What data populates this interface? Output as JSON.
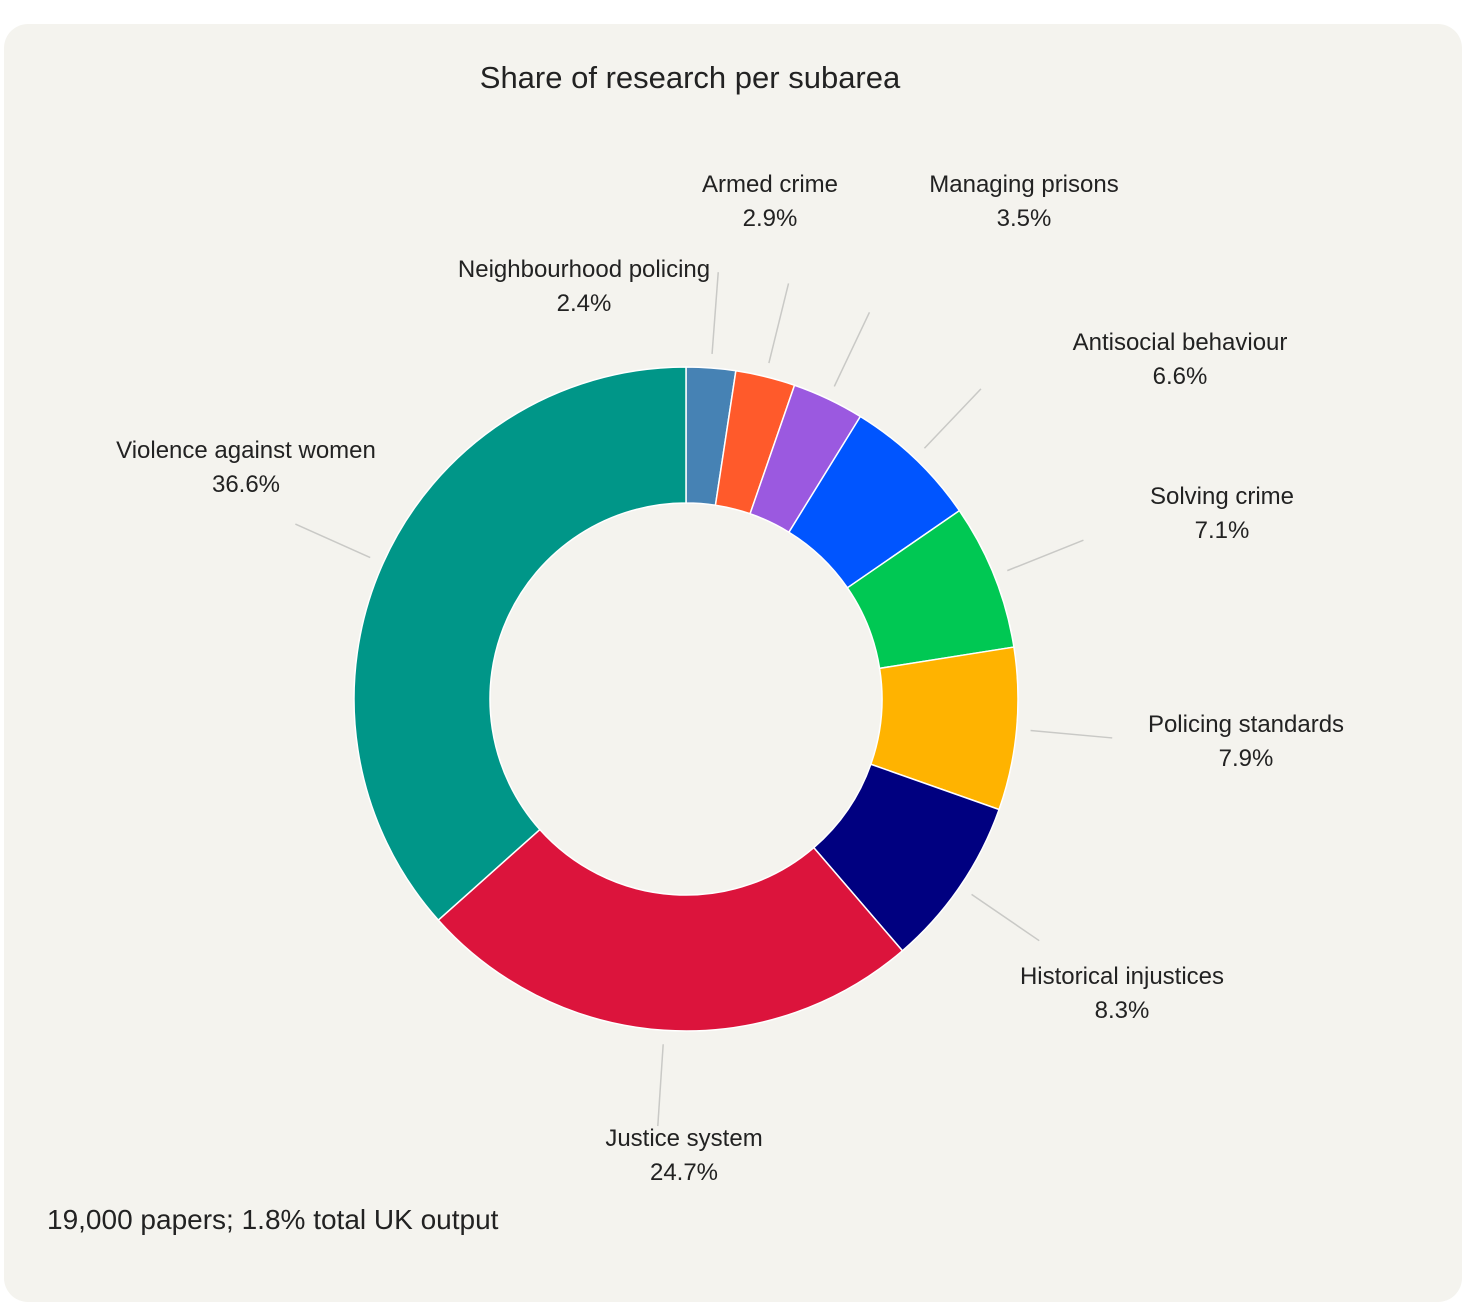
{
  "chart_data": {
    "type": "pie",
    "title": "Share of research per subarea",
    "hole": true,
    "categories": [
      "Neighbourhood policing",
      "Armed crime",
      "Managing prisons",
      "Antisocial behaviour",
      "Solving crime",
      "Policing standards",
      "Historical injustices",
      "Justice system",
      "Violence against women"
    ],
    "values": [
      2.4,
      2.9,
      3.5,
      6.6,
      7.1,
      7.9,
      8.3,
      24.7,
      36.6
    ],
    "value_labels": [
      "2.4%",
      "2.9%",
      "3.5%",
      "6.6%",
      "7.1%",
      "7.9%",
      "8.3%",
      "24.7%",
      "36.6%"
    ],
    "colors": [
      "#4682b4",
      "#ff5a2b",
      "#9b59e0",
      "#0055ff",
      "#00c853",
      "#ffb300",
      "#000080",
      "#dc143c",
      "#009688"
    ],
    "footnote": "19,000 papers; 1.8% total UK output"
  }
}
